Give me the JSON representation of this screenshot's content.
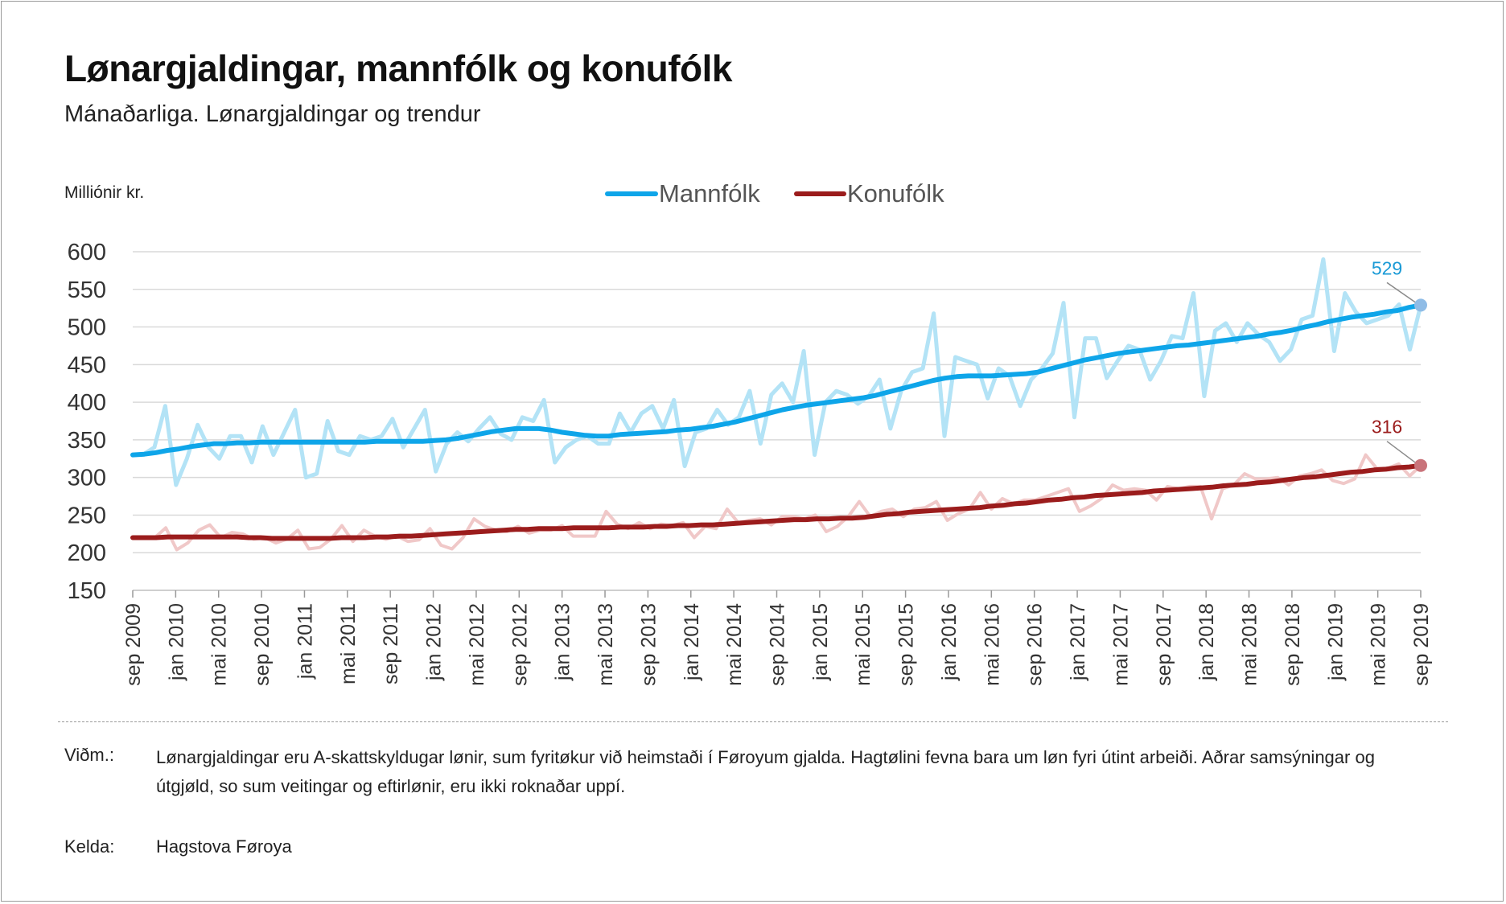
{
  "header": {
    "title": "Lønargjaldingar, mannfólk og konufólk",
    "subtitle": "Mánaðarliga. Lønargjaldingar og trendur",
    "unit_label": "Milliónir kr."
  },
  "footer": {
    "note_label": "Viðm.:",
    "note_text": "Lønargjaldingar eru A-skattskyldugar lønir, sum fyritøkur við heimstaði í Føroyum gjalda. Hagtølini fevna bara um løn fyri útint arbeiði. Aðrar samsýningar og útgjøld, so sum veitingar og eftirlønir, eru ikki roknaðar uppí.",
    "source_label": "Kelda:",
    "source_text": "Hagstova Føroya"
  },
  "colors": {
    "men_trend": "#0ea5e9",
    "men_raw": "#b3e3f6",
    "women_trend": "#9b1c1c",
    "women_raw": "#f0c8c8",
    "men_end_marker": "#8fbce6",
    "women_end_marker": "#c9737a",
    "men_label": "#1a9ad6",
    "women_label": "#9b1c1c",
    "grid": "#d9d9d9"
  },
  "chart_data": {
    "type": "line",
    "title": "Lønargjaldingar, mannfólk og konufólk",
    "subtitle": "Mánaðarliga. Lønargjaldingar og trendur",
    "ylabel": "Milliónir kr.",
    "ylim": [
      150,
      600
    ],
    "yticks": [
      150,
      200,
      250,
      300,
      350,
      400,
      450,
      500,
      550,
      600
    ],
    "x_start": "sep 2009",
    "x_end": "sep 2019",
    "xtick_labels": [
      "sep 2009",
      "jan 2010",
      "mai 2010",
      "sep 2010",
      "jan 2011",
      "mai 2011",
      "sep 2011",
      "jan 2012",
      "mai 2012",
      "sep 2012",
      "jan 2013",
      "mai 2013",
      "sep 2013",
      "jan 2014",
      "mai 2014",
      "sep 2014",
      "jan 2015",
      "mai 2015",
      "sep 2015",
      "jan 2016",
      "mai 2016",
      "sep 2016",
      "jan 2017",
      "mai 2017",
      "sep 2017",
      "jan 2018",
      "mai 2018",
      "sep 2018",
      "jan 2019",
      "mai 2019",
      "sep 2019"
    ],
    "grid": true,
    "legend_position": "top-center",
    "series": [
      {
        "name": "Mannfólk",
        "kind": "trend",
        "values": [
          330,
          331,
          333,
          336,
          338,
          341,
          343,
          345,
          345,
          346,
          346,
          347,
          347,
          347,
          347,
          347,
          347,
          347,
          347,
          347,
          347,
          348,
          348,
          348,
          348,
          348,
          349,
          350,
          352,
          355,
          358,
          361,
          363,
          365,
          365,
          365,
          363,
          360,
          358,
          356,
          355,
          355,
          357,
          358,
          359,
          360,
          361,
          363,
          364,
          366,
          368,
          371,
          374,
          378,
          382,
          386,
          390,
          393,
          396,
          398,
          400,
          402,
          404,
          406,
          409,
          413,
          417,
          421,
          425,
          429,
          432,
          434,
          435,
          435,
          435,
          436,
          437,
          438,
          440,
          444,
          448,
          452,
          456,
          459,
          462,
          465,
          467,
          469,
          471,
          473,
          475,
          476,
          478,
          480,
          482,
          484,
          486,
          488,
          491,
          493,
          496,
          500,
          503,
          507,
          510,
          513,
          515,
          517,
          520,
          522,
          526,
          529
        ]
      },
      {
        "name": "Mannfólk",
        "kind": "monthly",
        "values": [
          330,
          331,
          340,
          395,
          290,
          325,
          370,
          340,
          325,
          355,
          355,
          320,
          368,
          330,
          360,
          390,
          300,
          305,
          375,
          335,
          330,
          355,
          350,
          355,
          378,
          340,
          365,
          390,
          308,
          345,
          360,
          348,
          365,
          380,
          358,
          350,
          380,
          375,
          403,
          320,
          340,
          350,
          355,
          345,
          345,
          385,
          360,
          385,
          395,
          365,
          403,
          315,
          360,
          365,
          390,
          370,
          380,
          415,
          345,
          410,
          425,
          400,
          468,
          330,
          400,
          415,
          410,
          398,
          408,
          430,
          365,
          415,
          440,
          445,
          518,
          355,
          460,
          455,
          450,
          405,
          445,
          435,
          395,
          430,
          445,
          465,
          532,
          380,
          485,
          485,
          432,
          455,
          475,
          470,
          430,
          455,
          488,
          485,
          545,
          408,
          495,
          505,
          480,
          505,
          490,
          480,
          455,
          470,
          510,
          515,
          590,
          468,
          545,
          520,
          505,
          510,
          515,
          530,
          470,
          529
        ]
      },
      {
        "name": "Konufólk",
        "kind": "trend",
        "values": [
          220,
          220,
          220,
          221,
          221,
          221,
          221,
          221,
          221,
          221,
          220,
          220,
          219,
          219,
          219,
          219,
          219,
          219,
          220,
          220,
          220,
          221,
          221,
          222,
          222,
          223,
          224,
          225,
          226,
          227,
          228,
          229,
          230,
          231,
          231,
          232,
          232,
          232,
          233,
          233,
          233,
          233,
          234,
          234,
          234,
          235,
          235,
          236,
          236,
          237,
          237,
          238,
          239,
          240,
          241,
          242,
          243,
          244,
          244,
          245,
          245,
          246,
          246,
          247,
          249,
          251,
          252,
          254,
          255,
          256,
          257,
          258,
          259,
          260,
          262,
          263,
          265,
          266,
          268,
          270,
          271,
          273,
          274,
          276,
          277,
          278,
          279,
          280,
          282,
          283,
          284,
          285,
          286,
          287,
          289,
          290,
          291,
          293,
          294,
          296,
          298,
          300,
          301,
          303,
          305,
          307,
          308,
          310,
          311,
          313,
          314,
          316
        ]
      },
      {
        "name": "Konufólk",
        "kind": "monthly",
        "values": [
          220,
          220,
          220,
          233,
          204,
          213,
          230,
          237,
          220,
          227,
          225,
          218,
          220,
          213,
          218,
          230,
          205,
          207,
          218,
          236,
          215,
          230,
          222,
          218,
          222,
          215,
          217,
          232,
          210,
          205,
          220,
          245,
          235,
          230,
          228,
          235,
          226,
          230,
          230,
          236,
          222,
          222,
          222,
          255,
          238,
          232,
          240,
          232,
          238,
          236,
          240,
          220,
          235,
          232,
          258,
          240,
          243,
          245,
          237,
          248,
          248,
          245,
          250,
          228,
          235,
          248,
          268,
          248,
          255,
          258,
          248,
          258,
          260,
          268,
          243,
          252,
          258,
          280,
          258,
          272,
          265,
          270,
          270,
          275,
          280,
          285,
          255,
          262,
          272,
          290,
          283,
          285,
          283,
          270,
          288,
          285,
          288,
          288,
          245,
          285,
          290,
          305,
          298,
          298,
          300,
          290,
          302,
          305,
          310,
          296,
          292,
          298,
          330,
          312,
          312,
          318,
          302,
          316
        ]
      }
    ],
    "end_labels": [
      {
        "series": "Mannfólk",
        "value": "529"
      },
      {
        "series": "Konufólk",
        "value": "316"
      }
    ]
  }
}
